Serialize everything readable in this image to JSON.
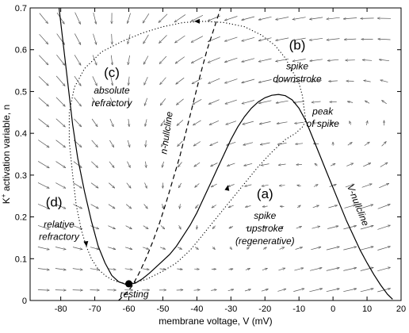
{
  "chart_data": {
    "type": "line",
    "title": "",
    "xlabel": "membrane voltage, V (mV)",
    "ylabel": "K+ activation variable, n",
    "ylabel_main": "K",
    "ylabel_sup": "+",
    "ylabel_rest": " activation variable, n",
    "xlim": [
      -89,
      20
    ],
    "ylim": [
      0,
      0.7
    ],
    "xticks": [
      -80,
      -70,
      -60,
      -50,
      -40,
      -30,
      -20,
      -10,
      0,
      10,
      20
    ],
    "yticks": [
      0,
      0.1,
      0.2,
      0.3,
      0.4,
      0.5,
      0.6,
      0.7
    ],
    "grid": false,
    "series": [
      {
        "name": "V-nullcline",
        "style": "solid",
        "x": [
          -80.5,
          -79.5,
          -78.5,
          -77.5,
          -76.5,
          -75,
          -73,
          -71,
          -69,
          -67,
          -65,
          -63,
          -61,
          -60,
          -58,
          -56,
          -54,
          -52,
          -50,
          -48,
          -46,
          -44,
          -42,
          -40,
          -38,
          -36,
          -34,
          -32,
          -30,
          -28,
          -26,
          -24,
          -22,
          -20,
          -18,
          -16,
          -14,
          -12,
          -10,
          -8,
          -6,
          -4,
          -2,
          0,
          2,
          4,
          6,
          8,
          10,
          12,
          14,
          16,
          17.5
        ],
        "y": [
          0.7,
          0.63,
          0.56,
          0.49,
          0.42,
          0.34,
          0.26,
          0.19,
          0.13,
          0.09,
          0.06,
          0.045,
          0.039,
          0.038,
          0.042,
          0.052,
          0.065,
          0.08,
          0.095,
          0.11,
          0.13,
          0.155,
          0.18,
          0.21,
          0.245,
          0.28,
          0.315,
          0.35,
          0.385,
          0.415,
          0.44,
          0.46,
          0.475,
          0.485,
          0.491,
          0.493,
          0.49,
          0.48,
          0.46,
          0.43,
          0.39,
          0.35,
          0.31,
          0.27,
          0.23,
          0.19,
          0.155,
          0.12,
          0.09,
          0.062,
          0.037,
          0.015,
          0.003
        ]
      },
      {
        "name": "n-nullcline",
        "style": "dashed",
        "x": [
          -63,
          -61,
          -59,
          -57,
          -55,
          -53,
          -51,
          -49,
          -47,
          -45,
          -43,
          -41,
          -39,
          -37,
          -35,
          -33
        ],
        "y": [
          0.0,
          0.015,
          0.035,
          0.065,
          0.1,
          0.14,
          0.185,
          0.235,
          0.29,
          0.345,
          0.41,
          0.475,
          0.54,
          0.6,
          0.65,
          0.7
        ]
      },
      {
        "name": "",
        "style": "dotted",
        "x": [
          -60,
          -55,
          -50,
          -46,
          -42,
          -38,
          -34,
          -30,
          -26,
          -22,
          -18,
          -14,
          -11,
          -9,
          -8,
          -8.5,
          -9,
          -10,
          -12,
          -14,
          -17,
          -21,
          -26,
          -32,
          -38,
          -44,
          -50,
          -56,
          -62,
          -68,
          -73,
          -76,
          -77.5,
          -77.5,
          -76.5,
          -75.5,
          -74,
          -72.5,
          -71,
          -69,
          -67,
          -65,
          -63,
          -61,
          -60
        ],
        "y": [
          0.04,
          0.05,
          0.07,
          0.09,
          0.12,
          0.16,
          0.2,
          0.24,
          0.28,
          0.32,
          0.355,
          0.385,
          0.4,
          0.415,
          0.43,
          0.46,
          0.49,
          0.52,
          0.55,
          0.58,
          0.61,
          0.635,
          0.655,
          0.665,
          0.668,
          0.665,
          0.655,
          0.64,
          0.62,
          0.595,
          0.555,
          0.51,
          0.45,
          0.38,
          0.3,
          0.23,
          0.17,
          0.13,
          0.1,
          0.075,
          0.06,
          0.05,
          0.044,
          0.041,
          0.04
        ]
      }
    ],
    "arrows_on_trajectory": [
      {
        "x": -31,
        "y": 0.27,
        "dx": 1,
        "dy": 0.042
      },
      {
        "x": -40,
        "y": 0.668,
        "dx": -1,
        "dy": 0.0
      },
      {
        "x": -72.5,
        "y": 0.135,
        "dx": 0.5,
        "dy": -0.03
      }
    ],
    "resting_point": {
      "x": -60,
      "y": 0.04,
      "label": "resting"
    },
    "vector_field": {
      "v_step": 5,
      "n_step": 0.05,
      "description": "gray arrows showing direction of (dV/dt, dn/dt)"
    },
    "annotations": [
      {
        "x": -20,
        "y": 0.245,
        "text": "(a)",
        "kind": "big"
      },
      {
        "x": -20,
        "y": 0.195,
        "text": "spike",
        "kind": "italic"
      },
      {
        "x": -20,
        "y": 0.165,
        "text": "upstroke",
        "kind": "italic"
      },
      {
        "x": -20,
        "y": 0.135,
        "text": "(regenerative)",
        "kind": "italic"
      },
      {
        "x": -10.5,
        "y": 0.6,
        "text": "(b)",
        "kind": "big"
      },
      {
        "x": -10.5,
        "y": 0.553,
        "text": "spike",
        "kind": "italic"
      },
      {
        "x": -10.5,
        "y": 0.523,
        "text": "downstroke",
        "kind": "italic"
      },
      {
        "x": -3,
        "y": 0.445,
        "text": "peak",
        "kind": "italic"
      },
      {
        "x": -3,
        "y": 0.415,
        "text": "of spike",
        "kind": "italic"
      },
      {
        "x": -65,
        "y": 0.535,
        "text": "(c)",
        "kind": "big"
      },
      {
        "x": -65,
        "y": 0.495,
        "text": "absolute",
        "kind": "italic"
      },
      {
        "x": -65,
        "y": 0.465,
        "text": "refractory",
        "kind": "italic"
      },
      {
        "x": -82,
        "y": 0.225,
        "text": "(d)",
        "kind": "big"
      },
      {
        "x": -80.5,
        "y": 0.175,
        "text": "relative",
        "kind": "italic"
      },
      {
        "x": -80.5,
        "y": 0.145,
        "text": "refractory",
        "kind": "italic"
      }
    ],
    "rotated_labels": [
      {
        "x": -48,
        "y": 0.4,
        "text": "n-nullcline",
        "angle": -82
      },
      {
        "x": 6.5,
        "y": 0.225,
        "text": "V-nullcline",
        "angle": 68
      }
    ],
    "colors": {
      "nullcline": "#000000",
      "field": "#666666",
      "point": "#000000"
    }
  }
}
